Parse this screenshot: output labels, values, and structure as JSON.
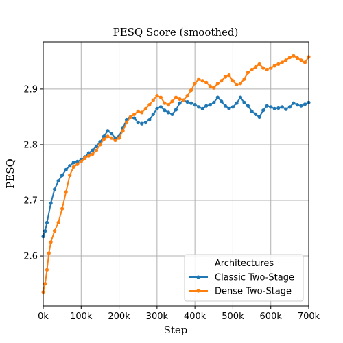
{
  "chart_data": {
    "type": "line",
    "title": "PESQ Score (smoothed)",
    "xlabel": "Step",
    "ylabel": "PESQ",
    "xlim": [
      0,
      700000
    ],
    "ylim": [
      2.51,
      2.985
    ],
    "x_ticks": [
      0,
      100000,
      200000,
      300000,
      400000,
      500000,
      600000,
      700000
    ],
    "x_tick_labels": [
      "0k",
      "100k",
      "200k",
      "300k",
      "400k",
      "500k",
      "600k",
      "700k"
    ],
    "y_ticks": [
      2.6,
      2.7,
      2.8,
      2.9
    ],
    "y_tick_labels": [
      "2.6",
      "2.7",
      "2.8",
      "2.9"
    ],
    "grid": true,
    "legend": {
      "title": "Architectures",
      "placement": "bottom-right"
    },
    "series": [
      {
        "name": "Classic Two-Stage",
        "color": "#1f77b4",
        "points": [
          [
            0,
            2.635
          ],
          [
            5000,
            2.645
          ],
          [
            10000,
            2.66
          ],
          [
            20000,
            2.695
          ],
          [
            30000,
            2.72
          ],
          [
            40000,
            2.735
          ],
          [
            50000,
            2.745
          ],
          [
            60000,
            2.755
          ],
          [
            70000,
            2.762
          ],
          [
            80000,
            2.768
          ],
          [
            90000,
            2.77
          ],
          [
            100000,
            2.773
          ],
          [
            110000,
            2.778
          ],
          [
            120000,
            2.785
          ],
          [
            130000,
            2.79
          ],
          [
            140000,
            2.797
          ],
          [
            150000,
            2.805
          ],
          [
            160000,
            2.815
          ],
          [
            170000,
            2.825
          ],
          [
            180000,
            2.82
          ],
          [
            190000,
            2.812
          ],
          [
            200000,
            2.815
          ],
          [
            210000,
            2.83
          ],
          [
            220000,
            2.845
          ],
          [
            230000,
            2.85
          ],
          [
            240000,
            2.848
          ],
          [
            250000,
            2.84
          ],
          [
            260000,
            2.838
          ],
          [
            270000,
            2.84
          ],
          [
            280000,
            2.845
          ],
          [
            290000,
            2.855
          ],
          [
            300000,
            2.865
          ],
          [
            310000,
            2.868
          ],
          [
            320000,
            2.862
          ],
          [
            330000,
            2.858
          ],
          [
            340000,
            2.855
          ],
          [
            350000,
            2.863
          ],
          [
            360000,
            2.875
          ],
          [
            370000,
            2.88
          ],
          [
            380000,
            2.877
          ],
          [
            390000,
            2.875
          ],
          [
            400000,
            2.872
          ],
          [
            410000,
            2.868
          ],
          [
            420000,
            2.865
          ],
          [
            430000,
            2.87
          ],
          [
            440000,
            2.872
          ],
          [
            450000,
            2.876
          ],
          [
            460000,
            2.885
          ],
          [
            470000,
            2.878
          ],
          [
            480000,
            2.87
          ],
          [
            490000,
            2.865
          ],
          [
            500000,
            2.868
          ],
          [
            510000,
            2.875
          ],
          [
            520000,
            2.885
          ],
          [
            530000,
            2.876
          ],
          [
            540000,
            2.87
          ],
          [
            550000,
            2.86
          ],
          [
            560000,
            2.855
          ],
          [
            570000,
            2.85
          ],
          [
            580000,
            2.862
          ],
          [
            590000,
            2.87
          ],
          [
            600000,
            2.868
          ],
          [
            610000,
            2.865
          ],
          [
            620000,
            2.866
          ],
          [
            630000,
            2.868
          ],
          [
            640000,
            2.864
          ],
          [
            650000,
            2.868
          ],
          [
            660000,
            2.875
          ],
          [
            670000,
            2.872
          ],
          [
            680000,
            2.87
          ],
          [
            690000,
            2.873
          ],
          [
            700000,
            2.876
          ]
        ]
      },
      {
        "name": "Dense Two-Stage",
        "color": "#ff7f0e",
        "points": [
          [
            0,
            2.535
          ],
          [
            5000,
            2.55
          ],
          [
            10000,
            2.575
          ],
          [
            15000,
            2.605
          ],
          [
            20000,
            2.625
          ],
          [
            30000,
            2.645
          ],
          [
            40000,
            2.66
          ],
          [
            50000,
            2.685
          ],
          [
            60000,
            2.715
          ],
          [
            70000,
            2.745
          ],
          [
            80000,
            2.76
          ],
          [
            90000,
            2.765
          ],
          [
            100000,
            2.77
          ],
          [
            110000,
            2.776
          ],
          [
            120000,
            2.78
          ],
          [
            130000,
            2.783
          ],
          [
            140000,
            2.79
          ],
          [
            150000,
            2.8
          ],
          [
            160000,
            2.81
          ],
          [
            170000,
            2.815
          ],
          [
            180000,
            2.812
          ],
          [
            190000,
            2.808
          ],
          [
            200000,
            2.812
          ],
          [
            210000,
            2.825
          ],
          [
            220000,
            2.84
          ],
          [
            230000,
            2.85
          ],
          [
            240000,
            2.855
          ],
          [
            250000,
            2.86
          ],
          [
            260000,
            2.858
          ],
          [
            270000,
            2.865
          ],
          [
            280000,
            2.872
          ],
          [
            290000,
            2.88
          ],
          [
            300000,
            2.888
          ],
          [
            310000,
            2.885
          ],
          [
            320000,
            2.875
          ],
          [
            330000,
            2.872
          ],
          [
            340000,
            2.878
          ],
          [
            350000,
            2.885
          ],
          [
            360000,
            2.882
          ],
          [
            370000,
            2.88
          ],
          [
            380000,
            2.888
          ],
          [
            390000,
            2.898
          ],
          [
            400000,
            2.91
          ],
          [
            410000,
            2.918
          ],
          [
            420000,
            2.915
          ],
          [
            430000,
            2.912
          ],
          [
            440000,
            2.905
          ],
          [
            450000,
            2.902
          ],
          [
            460000,
            2.91
          ],
          [
            470000,
            2.915
          ],
          [
            480000,
            2.922
          ],
          [
            490000,
            2.925
          ],
          [
            500000,
            2.915
          ],
          [
            510000,
            2.908
          ],
          [
            520000,
            2.91
          ],
          [
            530000,
            2.918
          ],
          [
            540000,
            2.93
          ],
          [
            550000,
            2.935
          ],
          [
            560000,
            2.94
          ],
          [
            570000,
            2.945
          ],
          [
            580000,
            2.938
          ],
          [
            590000,
            2.935
          ],
          [
            600000,
            2.938
          ],
          [
            610000,
            2.942
          ],
          [
            620000,
            2.945
          ],
          [
            630000,
            2.948
          ],
          [
            640000,
            2.952
          ],
          [
            650000,
            2.957
          ],
          [
            660000,
            2.96
          ],
          [
            670000,
            2.956
          ],
          [
            680000,
            2.952
          ],
          [
            690000,
            2.948
          ],
          [
            700000,
            2.958
          ]
        ]
      }
    ]
  }
}
